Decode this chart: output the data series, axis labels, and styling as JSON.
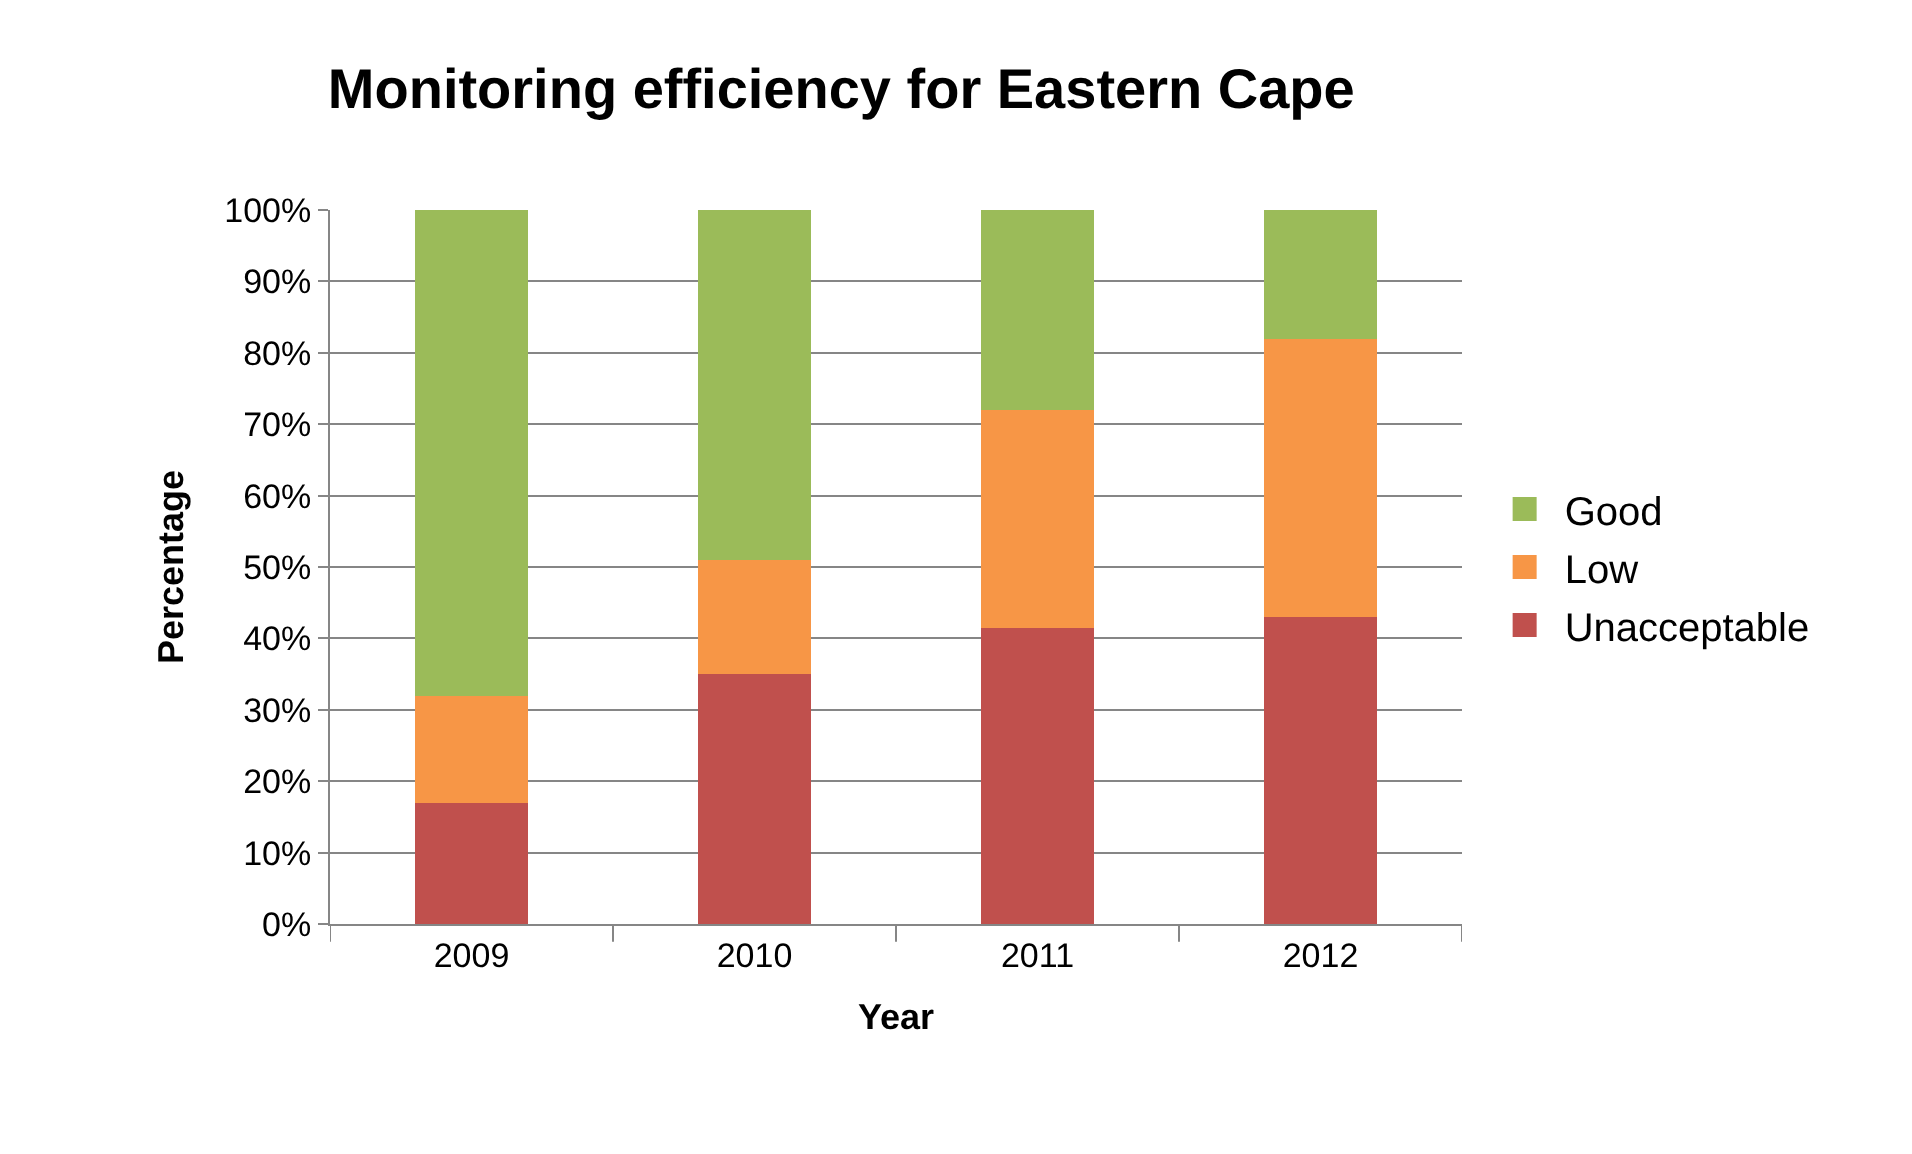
{
  "chart_data": {
    "type": "bar",
    "title": "Monitoring efficiency for Eastern Cape",
    "xlabel": "Year",
    "ylabel": "Percentage",
    "categories": [
      "2009",
      "2010",
      "2011",
      "2012"
    ],
    "stacked": true,
    "series": [
      {
        "name": "Unacceptable",
        "color": "#c0504d",
        "values": [
          17,
          35,
          41.5,
          43
        ]
      },
      {
        "name": "Low",
        "color": "#f79646",
        "values": [
          15,
          16,
          30.5,
          39
        ]
      },
      {
        "name": "Good",
        "color": "#9bbb59",
        "values": [
          68,
          49,
          28,
          18
        ]
      }
    ],
    "ylim": [
      0,
      100
    ],
    "yticks": [
      {
        "value": 0,
        "label": "0%"
      },
      {
        "value": 10,
        "label": "10%"
      },
      {
        "value": 20,
        "label": "20%"
      },
      {
        "value": 30,
        "label": "30%"
      },
      {
        "value": 40,
        "label": "40%"
      },
      {
        "value": 50,
        "label": "50%"
      },
      {
        "value": 60,
        "label": "60%"
      },
      {
        "value": 70,
        "label": "70%"
      },
      {
        "value": 80,
        "label": "80%"
      },
      {
        "value": 90,
        "label": "90%"
      },
      {
        "value": 100,
        "label": "100%"
      }
    ],
    "grid": "y",
    "legend": "right"
  }
}
